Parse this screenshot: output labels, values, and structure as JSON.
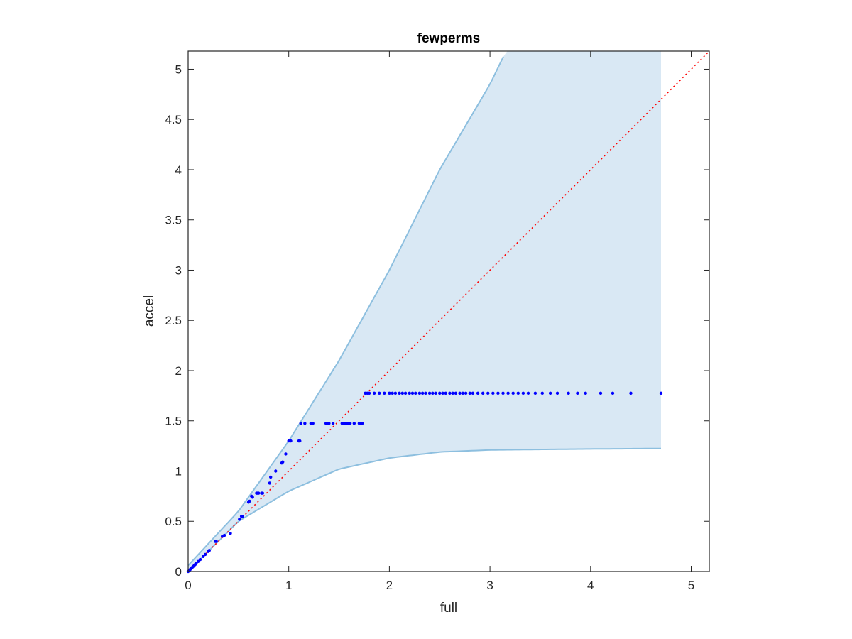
{
  "chart_data": {
    "type": "scatter",
    "title": "fewperms",
    "xlabel": "full",
    "ylabel": "accel",
    "xlim": [
      0,
      5.18
    ],
    "ylim": [
      0,
      5.18
    ],
    "xticks": [
      0,
      1,
      2,
      3,
      4,
      5
    ],
    "xtick_labels": [
      "0",
      "1",
      "2",
      "3",
      "4",
      "5"
    ],
    "yticks": [
      0,
      0.5,
      1,
      1.5,
      2,
      2.5,
      3,
      3.5,
      4,
      4.5,
      5
    ],
    "ytick_labels": [
      "0",
      "0.5",
      "1",
      "1.5",
      "2",
      "2.5",
      "3",
      "3.5",
      "4",
      "4.5",
      "5"
    ],
    "grid": false,
    "colors": {
      "points": "#0000ff",
      "band_fill": "#d9e8f4",
      "band_edge": "#8dbfdf",
      "reference_line": "#ff0000",
      "axes": "#262626"
    },
    "band": {
      "upper": [
        [
          0,
          0.06
        ],
        [
          0.5,
          0.6
        ],
        [
          1,
          1.3
        ],
        [
          1.5,
          2.1
        ],
        [
          2,
          3.0
        ],
        [
          2.5,
          4.0
        ],
        [
          3,
          4.85
        ],
        [
          3.16,
          5.18
        ],
        [
          4.7,
          5.18
        ]
      ],
      "lower": [
        [
          0,
          0
        ],
        [
          0.5,
          0.5
        ],
        [
          1,
          0.8
        ],
        [
          1.5,
          1.02
        ],
        [
          2,
          1.13
        ],
        [
          2.5,
          1.19
        ],
        [
          3,
          1.21
        ],
        [
          4,
          1.22
        ],
        [
          4.7,
          1.225
        ]
      ]
    },
    "reference_line": {
      "x": [
        0,
        5.18
      ],
      "y": [
        0,
        5.18
      ],
      "style": "dotted"
    },
    "series": [
      {
        "x": [
          0.0,
          0.01,
          0.02,
          0.03,
          0.04,
          0.05,
          0.06,
          0.07,
          0.08,
          0.1,
          0.12,
          0.15,
          0.17,
          0.2,
          0.21,
          0.27,
          0.28,
          0.34,
          0.36,
          0.42,
          0.51,
          0.53,
          0.54,
          0.6,
          0.61,
          0.63,
          0.64,
          0.68,
          0.69,
          0.7,
          0.73,
          0.74,
          0.81,
          0.82,
          0.87,
          0.93,
          0.94,
          0.97,
          1.0,
          1.02,
          1.1,
          1.11
        ],
        "y": [
          0.0,
          0.01,
          0.02,
          0.03,
          0.04,
          0.05,
          0.06,
          0.07,
          0.08,
          0.1,
          0.12,
          0.15,
          0.17,
          0.2,
          0.21,
          0.3,
          0.3,
          0.35,
          0.36,
          0.38,
          0.52,
          0.55,
          0.55,
          0.69,
          0.7,
          0.75,
          0.74,
          0.78,
          0.78,
          0.78,
          0.78,
          0.78,
          0.88,
          0.94,
          1.0,
          1.08,
          1.09,
          1.17,
          1.3,
          1.3,
          1.3,
          1.3
        ]
      },
      {
        "x": [
          1.12,
          1.16,
          1.22,
          1.24,
          1.37,
          1.39,
          1.4,
          1.44,
          1.53,
          1.55,
          1.57,
          1.59,
          1.61,
          1.65,
          1.7,
          1.71,
          1.72,
          1.73
        ],
        "y": [
          1.475,
          1.475,
          1.475,
          1.475,
          1.475,
          1.475,
          1.475,
          1.475,
          1.475,
          1.475,
          1.475,
          1.475,
          1.475,
          1.475,
          1.475,
          1.475,
          1.475,
          1.475
        ]
      },
      {
        "x": [
          1.76,
          1.78,
          1.8,
          1.85,
          1.9,
          1.95,
          2.0,
          2.03,
          2.06,
          2.1,
          2.13,
          2.16,
          2.2,
          2.23,
          2.26,
          2.3,
          2.33,
          2.36,
          2.4,
          2.43,
          2.46,
          2.5,
          2.53,
          2.56,
          2.6,
          2.63,
          2.66,
          2.7,
          2.73,
          2.76,
          2.8,
          2.83,
          2.88,
          2.93,
          2.98,
          3.03,
          3.08,
          3.13,
          3.18,
          3.23,
          3.28,
          3.33,
          3.38,
          3.45,
          3.52,
          3.6,
          3.67,
          3.78,
          3.87,
          3.95,
          4.1,
          4.22,
          4.4,
          4.7
        ],
        "y": [
          1.775,
          1.775,
          1.775,
          1.775,
          1.775,
          1.775,
          1.775,
          1.775,
          1.775,
          1.775,
          1.775,
          1.775,
          1.775,
          1.775,
          1.775,
          1.775,
          1.775,
          1.775,
          1.775,
          1.775,
          1.775,
          1.775,
          1.775,
          1.775,
          1.775,
          1.775,
          1.775,
          1.775,
          1.775,
          1.775,
          1.775,
          1.775,
          1.775,
          1.775,
          1.775,
          1.775,
          1.775,
          1.775,
          1.775,
          1.775,
          1.775,
          1.775,
          1.775,
          1.775,
          1.775,
          1.775,
          1.775,
          1.775,
          1.775,
          1.775,
          1.775,
          1.775,
          1.775,
          1.775
        ]
      }
    ]
  }
}
